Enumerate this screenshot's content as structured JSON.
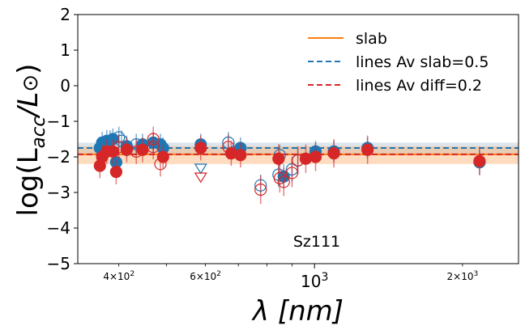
{
  "chart_data": {
    "type": "scatter",
    "annotation": "Sz111",
    "xlabel": "λ [nm]",
    "ylabel_parts": {
      "main": "log(L",
      "sub": "acc",
      "tail": "/L",
      "sym": "⊙",
      "close": ")"
    },
    "x_scale": "log",
    "xlim": [
      330,
      2600
    ],
    "ylim": [
      -5,
      2
    ],
    "y_ticks": [
      2,
      1,
      0,
      -1,
      -2,
      -3,
      -4,
      -5
    ],
    "y_tick_labels": [
      "2",
      "1",
      "0",
      "−1",
      "−2",
      "−3",
      "−4",
      "−5"
    ],
    "x_major_ticks": [
      1000
    ],
    "x_major_labels": [
      "10",
      "3"
    ],
    "x_minor_labeled": [
      {
        "value": 400,
        "mant": "4",
        "times": "×",
        "base": "10",
        "exp": "2"
      },
      {
        "value": 600,
        "mant": "6",
        "times": "×",
        "base": "10",
        "exp": "2"
      },
      {
        "value": 2000,
        "mant": "2",
        "times": "×",
        "base": "10",
        "exp": "3"
      }
    ],
    "x_minor_ticks": [
      400,
      500,
      600,
      700,
      800,
      900,
      2000
    ],
    "legend": {
      "position": "upper-right",
      "entries": [
        {
          "label": "slab",
          "color": "#ff7f0e",
          "style": "solid"
        },
        {
          "label": "lines Av slab=0.5",
          "color": "#1f77b4",
          "style": "dashed"
        },
        {
          "label": "lines Av diff=0.2",
          "color": "#d62728",
          "style": "dashed"
        }
      ]
    },
    "colors": {
      "blue": "#1f77b4",
      "red": "#d62728",
      "orange": "#ff7f0e"
    },
    "slab": {
      "value": -1.93,
      "band": [
        -2.2,
        -1.7
      ]
    },
    "lines_blue": {
      "value": -1.75,
      "band": [
        -1.95,
        -1.6
      ]
    },
    "lines_red": {
      "value": -1.93
    },
    "blue_points": [
      {
        "x": 366,
        "y": -1.75,
        "err": 0.3,
        "open": false
      },
      {
        "x": 370,
        "y": -1.6,
        "err": 0.3,
        "open": false
      },
      {
        "x": 378,
        "y": -1.55,
        "err": 0.3,
        "open": false
      },
      {
        "x": 384,
        "y": -1.55,
        "err": 0.3,
        "open": false
      },
      {
        "x": 389,
        "y": -1.5,
        "err": 0.3,
        "open": false
      },
      {
        "x": 395,
        "y": -2.15,
        "err": 0.3,
        "open": false
      },
      {
        "x": 400,
        "y": -1.45,
        "err": 0.3,
        "open": true
      },
      {
        "x": 405,
        "y": -1.55,
        "err": 0.3,
        "open": true
      },
      {
        "x": 415,
        "y": -1.7,
        "err": 0.3,
        "open": false
      },
      {
        "x": 434,
        "y": -1.65,
        "err": 0.3,
        "open": true
      },
      {
        "x": 447,
        "y": -1.65,
        "err": 0.3,
        "open": false
      },
      {
        "x": 470,
        "y": -1.6,
        "err": 0.3,
        "open": false
      },
      {
        "x": 486,
        "y": -1.65,
        "err": 0.3,
        "open": false
      },
      {
        "x": 492,
        "y": -1.75,
        "err": 0.3,
        "open": false
      },
      {
        "x": 587,
        "y": -1.65,
        "err": 0.3,
        "open": false
      },
      {
        "x": 587,
        "y": -2.3,
        "err": 0,
        "open": true,
        "upper": true
      },
      {
        "x": 668,
        "y": -1.6,
        "err": 0.3,
        "open": true
      },
      {
        "x": 707,
        "y": -1.75,
        "err": 0.3,
        "open": false
      },
      {
        "x": 777,
        "y": -2.8,
        "err": 0.3,
        "open": true
      },
      {
        "x": 845,
        "y": -2.5,
        "err": 0.35,
        "open": true
      },
      {
        "x": 850,
        "y": -1.95,
        "err": 0.3,
        "open": true
      },
      {
        "x": 866,
        "y": -2.55,
        "err": 0.35,
        "open": false
      },
      {
        "x": 900,
        "y": -2.35,
        "err": 0.35,
        "open": true
      },
      {
        "x": 925,
        "y": -2.1,
        "err": 0.35,
        "open": true
      },
      {
        "x": 1005,
        "y": -1.85,
        "err": 0.3,
        "open": false
      },
      {
        "x": 1095,
        "y": -1.85,
        "err": 0.3,
        "open": false
      },
      {
        "x": 1282,
        "y": -1.75,
        "err": 0.3,
        "open": false
      },
      {
        "x": 2166,
        "y": -2.15,
        "err": 0.35,
        "open": false
      }
    ],
    "red_points": [
      {
        "x": 366,
        "y": -2.25,
        "err": 0.35,
        "open": false
      },
      {
        "x": 370,
        "y": -2.0,
        "err": 0.35,
        "open": false
      },
      {
        "x": 378,
        "y": -1.85,
        "err": 0.35,
        "open": false
      },
      {
        "x": 389,
        "y": -1.85,
        "err": 0.35,
        "open": false
      },
      {
        "x": 395,
        "y": -2.42,
        "err": 0.35,
        "open": false
      },
      {
        "x": 400,
        "y": -1.72,
        "err": 0.35,
        "open": true
      },
      {
        "x": 415,
        "y": -1.8,
        "err": 0.35,
        "open": false
      },
      {
        "x": 434,
        "y": -1.85,
        "err": 0.35,
        "open": true
      },
      {
        "x": 447,
        "y": -1.8,
        "err": 0.35,
        "open": false
      },
      {
        "x": 470,
        "y": -1.72,
        "err": 0.35,
        "open": true
      },
      {
        "x": 470,
        "y": -1.5,
        "err": 0.35,
        "open": true
      },
      {
        "x": 486,
        "y": -2.2,
        "err": 0.35,
        "open": true
      },
      {
        "x": 492,
        "y": -2.0,
        "err": 0.35,
        "open": false
      },
      {
        "x": 587,
        "y": -1.75,
        "err": 0.35,
        "open": false
      },
      {
        "x": 587,
        "y": -2.55,
        "err": 0,
        "open": true,
        "upper": true
      },
      {
        "x": 668,
        "y": -1.72,
        "err": 0.35,
        "open": true
      },
      {
        "x": 677,
        "y": -1.9,
        "err": 0.35,
        "open": false
      },
      {
        "x": 707,
        "y": -1.95,
        "err": 0.35,
        "open": false
      },
      {
        "x": 777,
        "y": -2.92,
        "err": 0.4,
        "open": true
      },
      {
        "x": 845,
        "y": -2.05,
        "err": 0.4,
        "open": false
      },
      {
        "x": 850,
        "y": -2.6,
        "err": 0.4,
        "open": true
      },
      {
        "x": 866,
        "y": -2.7,
        "err": 0.4,
        "open": true
      },
      {
        "x": 900,
        "y": -2.45,
        "err": 0.4,
        "open": true
      },
      {
        "x": 925,
        "y": -2.1,
        "err": 0.4,
        "open": true
      },
      {
        "x": 960,
        "y": -2.05,
        "err": 0.4,
        "open": false
      },
      {
        "x": 1005,
        "y": -2.0,
        "err": 0.4,
        "open": false
      },
      {
        "x": 1095,
        "y": -1.9,
        "err": 0.4,
        "open": false
      },
      {
        "x": 1282,
        "y": -1.8,
        "err": 0.4,
        "open": false
      },
      {
        "x": 2166,
        "y": -2.12,
        "err": 0.4,
        "open": false
      }
    ]
  }
}
